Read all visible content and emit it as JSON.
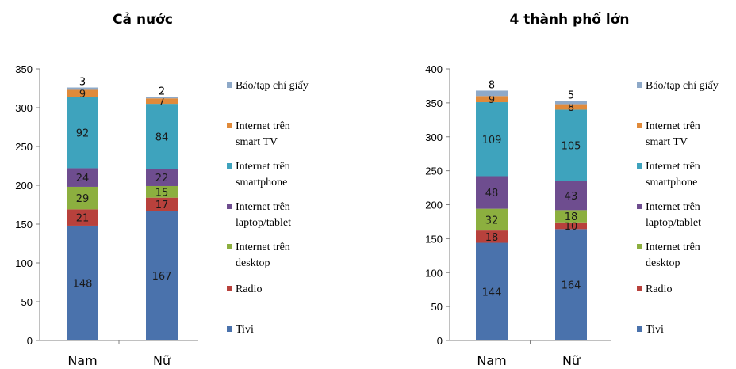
{
  "legend": [
    {
      "key": "bao",
      "lines": [
        "Báo/tạp chí giấy"
      ],
      "color": "#8ea9c8"
    },
    {
      "key": "smarttv",
      "lines": [
        "Internet trên",
        "smart TV"
      ],
      "color": "#e08a3a"
    },
    {
      "key": "smartphone",
      "lines": [
        "Internet trên",
        "smartphone"
      ],
      "color": "#3ea3bd"
    },
    {
      "key": "laptop",
      "lines": [
        "Internet trên",
        "laptop/tablet"
      ],
      "color": "#6e4d8f"
    },
    {
      "key": "desktop",
      "lines": [
        "Internet trên",
        "desktop"
      ],
      "color": "#8caf3f"
    },
    {
      "key": "radio",
      "lines": [
        "Radio"
      ],
      "color": "#b8413c"
    },
    {
      "key": "tivi",
      "lines": [
        "Tivi"
      ],
      "color": "#4a72ac"
    }
  ],
  "chart_data": [
    {
      "type": "bar",
      "stacked": true,
      "title": "Cả nước",
      "categories": [
        "Nam",
        "Nữ"
      ],
      "ylim": [
        0,
        350
      ],
      "yticks": [
        0,
        50,
        100,
        150,
        200,
        250,
        300,
        350
      ],
      "series": [
        {
          "name": "Tivi",
          "values": [
            148,
            167
          ]
        },
        {
          "name": "Radio",
          "values": [
            21,
            17
          ]
        },
        {
          "name": "Internet trên desktop",
          "values": [
            29,
            15
          ]
        },
        {
          "name": "Internet trên laptop/tablet",
          "values": [
            24,
            22
          ]
        },
        {
          "name": "Internet trên smartphone",
          "values": [
            92,
            84
          ]
        },
        {
          "name": "Internet trên smart TV",
          "values": [
            9,
            7
          ]
        },
        {
          "name": "Báo/tạp chí giấy",
          "values": [
            3,
            2
          ]
        }
      ],
      "legend_position": "right"
    },
    {
      "type": "bar",
      "stacked": true,
      "title": "4 thành phố lớn",
      "categories": [
        "Nam",
        "Nữ"
      ],
      "ylim": [
        0,
        400
      ],
      "yticks": [
        0,
        50,
        100,
        150,
        200,
        250,
        300,
        350,
        400
      ],
      "series": [
        {
          "name": "Tivi",
          "values": [
            144,
            164
          ]
        },
        {
          "name": "Radio",
          "values": [
            18,
            10
          ]
        },
        {
          "name": "Internet trên desktop",
          "values": [
            32,
            18
          ]
        },
        {
          "name": "Internet trên laptop/tablet",
          "values": [
            48,
            43
          ]
        },
        {
          "name": "Internet trên smartphone",
          "values": [
            109,
            105
          ]
        },
        {
          "name": "Internet trên smart TV",
          "values": [
            9,
            8
          ]
        },
        {
          "name": "Báo/tạp chí giấy",
          "values": [
            8,
            5
          ]
        }
      ],
      "legend_position": "right"
    }
  ]
}
